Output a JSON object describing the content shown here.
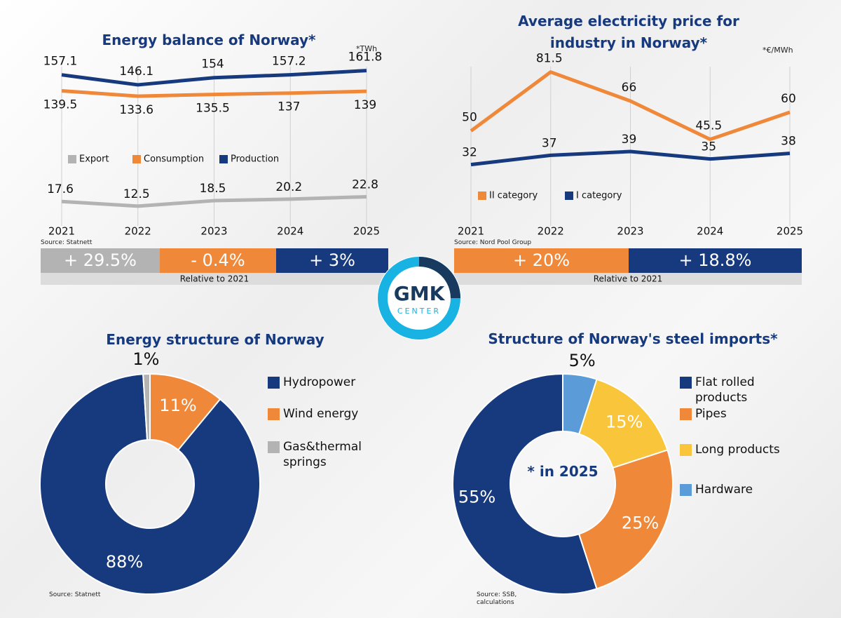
{
  "logo": {
    "name": "GMK",
    "subtitle": "CENTER"
  },
  "chart_data": [
    {
      "type": "line",
      "title": "Energy balance of Norway*",
      "unit": "*TWh",
      "categories": [
        "2021",
        "2022",
        "2023",
        "2024",
        "2025"
      ],
      "series": [
        {
          "name": "Export",
          "color": "#b3b3b3",
          "values": [
            17.6,
            12.5,
            18.5,
            20.2,
            22.8
          ]
        },
        {
          "name": "Consumption",
          "color": "#f0883a",
          "values": [
            139.5,
            133.6,
            135.5,
            137,
            139
          ]
        },
        {
          "name": "Production",
          "color": "#173a7e",
          "values": [
            157.1,
            146.1,
            154,
            157.2,
            161.8
          ]
        }
      ],
      "ylim": [
        0,
        170
      ],
      "grid": true,
      "source": "Source: Statnett",
      "changes": [
        {
          "label": "+ 29.5%",
          "color": "#b3b3b3"
        },
        {
          "label": "- 0.4%",
          "color": "#f0883a"
        },
        {
          "label": "+ 3%",
          "color": "#173a7e"
        }
      ],
      "changes_caption": "Relative to 2021"
    },
    {
      "type": "line",
      "title": "Average electricity price for industry in Norway*",
      "unit": "*€/MWh",
      "categories": [
        "2021",
        "2022",
        "2023",
        "2024",
        "2025"
      ],
      "series": [
        {
          "name": "II category",
          "color": "#f0883a",
          "values": [
            50,
            81.5,
            66,
            45.5,
            60
          ]
        },
        {
          "name": "I category",
          "color": "#173a7e",
          "values": [
            32,
            37,
            39,
            35,
            38
          ]
        }
      ],
      "ylim": [
        0,
        90
      ],
      "grid": true,
      "source": "Source: Nord Pool Group",
      "changes": [
        {
          "label": "+ 20%",
          "color": "#f0883a"
        },
        {
          "label": "+ 18.8%",
          "color": "#173a7e"
        }
      ],
      "changes_caption": "Relative to 2021"
    },
    {
      "type": "donut",
      "title": "Energy structure of Norway",
      "categories": [
        "Hydropower",
        "Wind energy",
        "Gas&thermal springs"
      ],
      "values": [
        88,
        11,
        1
      ],
      "value_labels": [
        "88%",
        "11%",
        "1%"
      ],
      "colors": [
        "#173a7e",
        "#f0883a",
        "#b3b3b3"
      ],
      "source": "Source:  Statnett"
    },
    {
      "type": "donut",
      "title": "Structure of Norway's steel imports*",
      "categories": [
        "Flat rolled products",
        "Pipes",
        "Long products",
        "Hardware"
      ],
      "values": [
        55,
        25,
        15,
        5
      ],
      "value_labels": [
        "55%",
        "25%",
        "15%",
        "5%"
      ],
      "colors": [
        "#173a7e",
        "#f0883a",
        "#f9c53a",
        "#5b9bd8"
      ],
      "source": "Source: SSB, calculations",
      "note": "* in 2025"
    }
  ]
}
